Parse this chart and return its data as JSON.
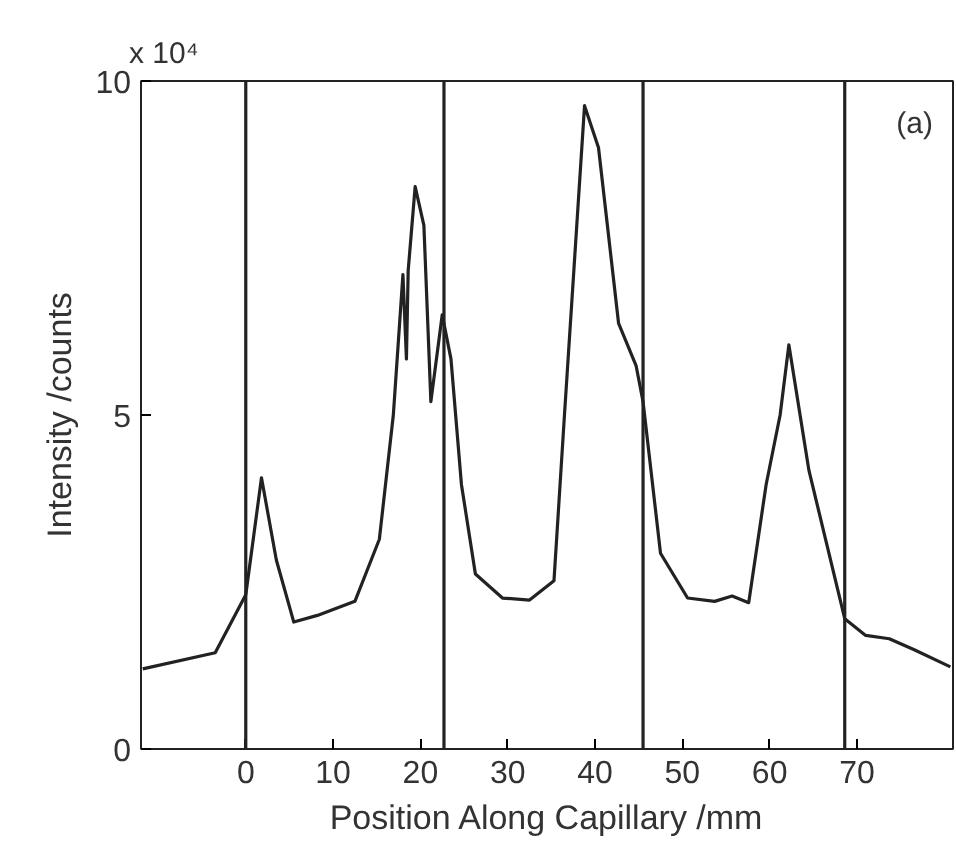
{
  "chart_data": {
    "type": "line",
    "ylabel": "Intensity /counts",
    "xlabel": "Position Along Capillary /mm",
    "annotations": [
      "x 10⁴",
      "(a)"
    ],
    "x": [
      -11.8,
      -3.5,
      0,
      1.8,
      3.5,
      5.5,
      8.2,
      12.5,
      15.3,
      16.9,
      18.0,
      18.4,
      18.6,
      19.4,
      20.4,
      21.2,
      22.5,
      23.5,
      24.7,
      26.3,
      29.4,
      32.5,
      35.3,
      36.5,
      38.8,
      40.4,
      42.7,
      44.7,
      45.5,
      47.5,
      50.6,
      53.7,
      55.7,
      57.6,
      59.6,
      61.2,
      62.2,
      64.5,
      68.6,
      71,
      73.7,
      76.5,
      80.7
    ],
    "series": [
      {
        "color": "#222222",
        "values": [
          1.2,
          1.44,
          2.31,
          4.06,
          2.83,
          1.9,
          2.0,
          2.21,
          3.14,
          5.0,
          7.1,
          5.84,
          7.16,
          8.42,
          7.84,
          5.2,
          6.5,
          5.84,
          3.96,
          2.62,
          2.26,
          2.23,
          2.52,
          5.0,
          9.63,
          9.0,
          6.37,
          5.74,
          5.2,
          2.93,
          2.26,
          2.21,
          2.29,
          2.19,
          3.96,
          5.0,
          6.05,
          4.17,
          1.95,
          1.7,
          1.65,
          1.49,
          1.23
        ]
      }
    ],
    "xlim": [
      -12,
      81
    ],
    "ylim": [
      0,
      10
    ],
    "xticks": [
      0,
      10,
      20,
      30,
      40,
      50,
      60,
      70
    ],
    "yticks": [
      0,
      5,
      10
    ],
    "ref_lines": [
      {
        "axis": "x",
        "value": 0,
        "color": "#222222"
      },
      {
        "axis": "x",
        "value": 22.7,
        "color": "#222222"
      },
      {
        "axis": "x",
        "value": 45.5,
        "color": "#222222"
      },
      {
        "axis": "x",
        "value": 68.6,
        "color": "#222222"
      }
    ],
    "grid": false,
    "marker": "none",
    "line_style": "solid"
  }
}
